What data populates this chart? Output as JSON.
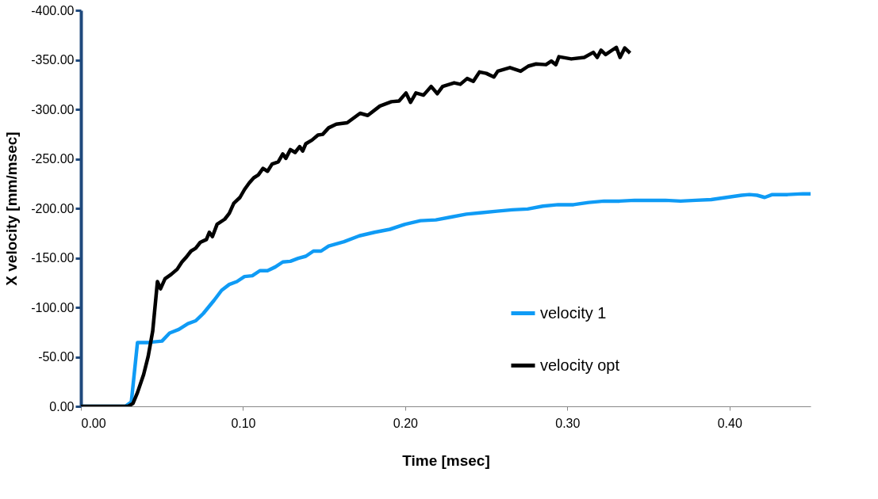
{
  "chart_data": {
    "type": "line",
    "xlabel": "Time [msec]",
    "ylabel": "X velocity [mm/msec]",
    "xlim": [
      0,
      0.45
    ],
    "ylim": [
      0,
      -400
    ],
    "xticks": [
      {
        "value": 0,
        "label": "0.00"
      },
      {
        "value": 0.1,
        "label": "0.10"
      },
      {
        "value": 0.2,
        "label": "0.20"
      },
      {
        "value": 0.3,
        "label": "0.30"
      },
      {
        "value": 0.4,
        "label": "0.40"
      }
    ],
    "yticks": [
      {
        "value": 0,
        "label": "0.00"
      },
      {
        "value": -50,
        "label": "-50.00"
      },
      {
        "value": -100,
        "label": "-100.00"
      },
      {
        "value": -150,
        "label": "-150.00"
      },
      {
        "value": -200,
        "label": "-200.00"
      },
      {
        "value": -250,
        "label": "-250.00"
      },
      {
        "value": -300,
        "label": "-300.00"
      },
      {
        "value": -350,
        "label": "-350.00"
      },
      {
        "value": -400,
        "label": "-400.00"
      }
    ],
    "grid": false,
    "legend": "right",
    "marker": "none",
    "line_style": "solid",
    "series": [
      {
        "name": "velocity 1",
        "color": "#0f9bf5",
        "x": [
          0,
          0.0274,
          0.0311,
          0.0349,
          0.0415,
          0.05,
          0.0547,
          0.0604,
          0.066,
          0.0708,
          0.0755,
          0.0821,
          0.0868,
          0.0915,
          0.0962,
          0.1009,
          0.1057,
          0.1104,
          0.1151,
          0.1198,
          0.1245,
          0.1292,
          0.134,
          0.1387,
          0.1434,
          0.1481,
          0.1528,
          0.1623,
          0.1717,
          0.1811,
          0.1906,
          0.2,
          0.2094,
          0.2189,
          0.2283,
          0.2377,
          0.2472,
          0.2566,
          0.266,
          0.2755,
          0.2849,
          0.2943,
          0.3038,
          0.3132,
          0.3226,
          0.3321,
          0.3415,
          0.3509,
          0.3604,
          0.3698,
          0.3792,
          0.3887,
          0.3981,
          0.4075,
          0.4123,
          0.417,
          0.4217,
          0.4264,
          0.4358,
          0.4453,
          0.45
        ],
        "values": [
          0,
          0,
          -4.4,
          -64.5,
          -64.5,
          -65.9,
          -74.0,
          -77.7,
          -83.5,
          -86.4,
          -93.8,
          -107.0,
          -117.2,
          -123.1,
          -126.0,
          -131.1,
          -131.9,
          -137.0,
          -137.0,
          -140.7,
          -145.8,
          -146.5,
          -149.5,
          -151.6,
          -156.8,
          -156.8,
          -161.9,
          -166.3,
          -172.2,
          -175.8,
          -178.8,
          -183.9,
          -187.5,
          -188.3,
          -191.2,
          -194.1,
          -195.6,
          -197.1,
          -198.5,
          -199.3,
          -202.2,
          -203.7,
          -203.7,
          -205.9,
          -207.3,
          -207.3,
          -208.1,
          -208.1,
          -208.1,
          -207.3,
          -208.1,
          -208.8,
          -211.0,
          -213.2,
          -213.9,
          -213.2,
          -211.0,
          -213.9,
          -213.9,
          -214.7,
          -214.7
        ]
      },
      {
        "name": "velocity opt",
        "color": "#000000",
        "x": [
          0,
          0.0292,
          0.0321,
          0.0349,
          0.0387,
          0.0415,
          0.0443,
          0.0472,
          0.0491,
          0.0519,
          0.0557,
          0.0594,
          0.0623,
          0.0651,
          0.0679,
          0.0708,
          0.0736,
          0.0774,
          0.0792,
          0.0811,
          0.084,
          0.0887,
          0.0915,
          0.0943,
          0.0981,
          0.1009,
          0.1038,
          0.1066,
          0.1094,
          0.1123,
          0.1151,
          0.1179,
          0.1217,
          0.1245,
          0.1264,
          0.1292,
          0.1321,
          0.1349,
          0.1368,
          0.1387,
          0.1425,
          0.1462,
          0.1491,
          0.1528,
          0.1575,
          0.1642,
          0.1722,
          0.1769,
          0.1844,
          0.1915,
          0.1962,
          0.2005,
          0.2033,
          0.2066,
          0.2113,
          0.216,
          0.2198,
          0.2231,
          0.2302,
          0.234,
          0.2382,
          0.242,
          0.2458,
          0.25,
          0.2547,
          0.2571,
          0.2646,
          0.2712,
          0.2759,
          0.2807,
          0.2868,
          0.2901,
          0.2929,
          0.2948,
          0.3024,
          0.3104,
          0.316,
          0.3184,
          0.3208,
          0.3236,
          0.3302,
          0.3325,
          0.3354,
          0.3387
        ],
        "values": [
          0,
          0,
          -2.9,
          -13.9,
          -32.2,
          -50.5,
          -76.2,
          -126.0,
          -118.7,
          -128.9,
          -133.3,
          -138.5,
          -145.8,
          -150.9,
          -156.8,
          -159.7,
          -165.6,
          -168.5,
          -175.8,
          -171.4,
          -183.9,
          -189.0,
          -194.9,
          -205.1,
          -211.0,
          -219.0,
          -225.6,
          -230.8,
          -233.7,
          -240.3,
          -237.4,
          -244.7,
          -246.9,
          -254.9,
          -250.5,
          -259.3,
          -256.4,
          -262.3,
          -257.9,
          -265.2,
          -268.9,
          -274.0,
          -274.7,
          -281.3,
          -285.0,
          -286.4,
          -296.0,
          -293.8,
          -303.3,
          -307.7,
          -308.4,
          -316.5,
          -307.0,
          -316.5,
          -314.3,
          -323.1,
          -315.8,
          -323.1,
          -326.7,
          -325.3,
          -331.1,
          -328.2,
          -337.7,
          -336.3,
          -332.6,
          -338.5,
          -342.1,
          -338.5,
          -343.6,
          -345.8,
          -345.1,
          -348.7,
          -345.1,
          -353.1,
          -350.9,
          -352.4,
          -357.5,
          -352.4,
          -359.7,
          -355.3,
          -362.6,
          -352.4,
          -361.9,
          -356.8
        ]
      }
    ]
  }
}
